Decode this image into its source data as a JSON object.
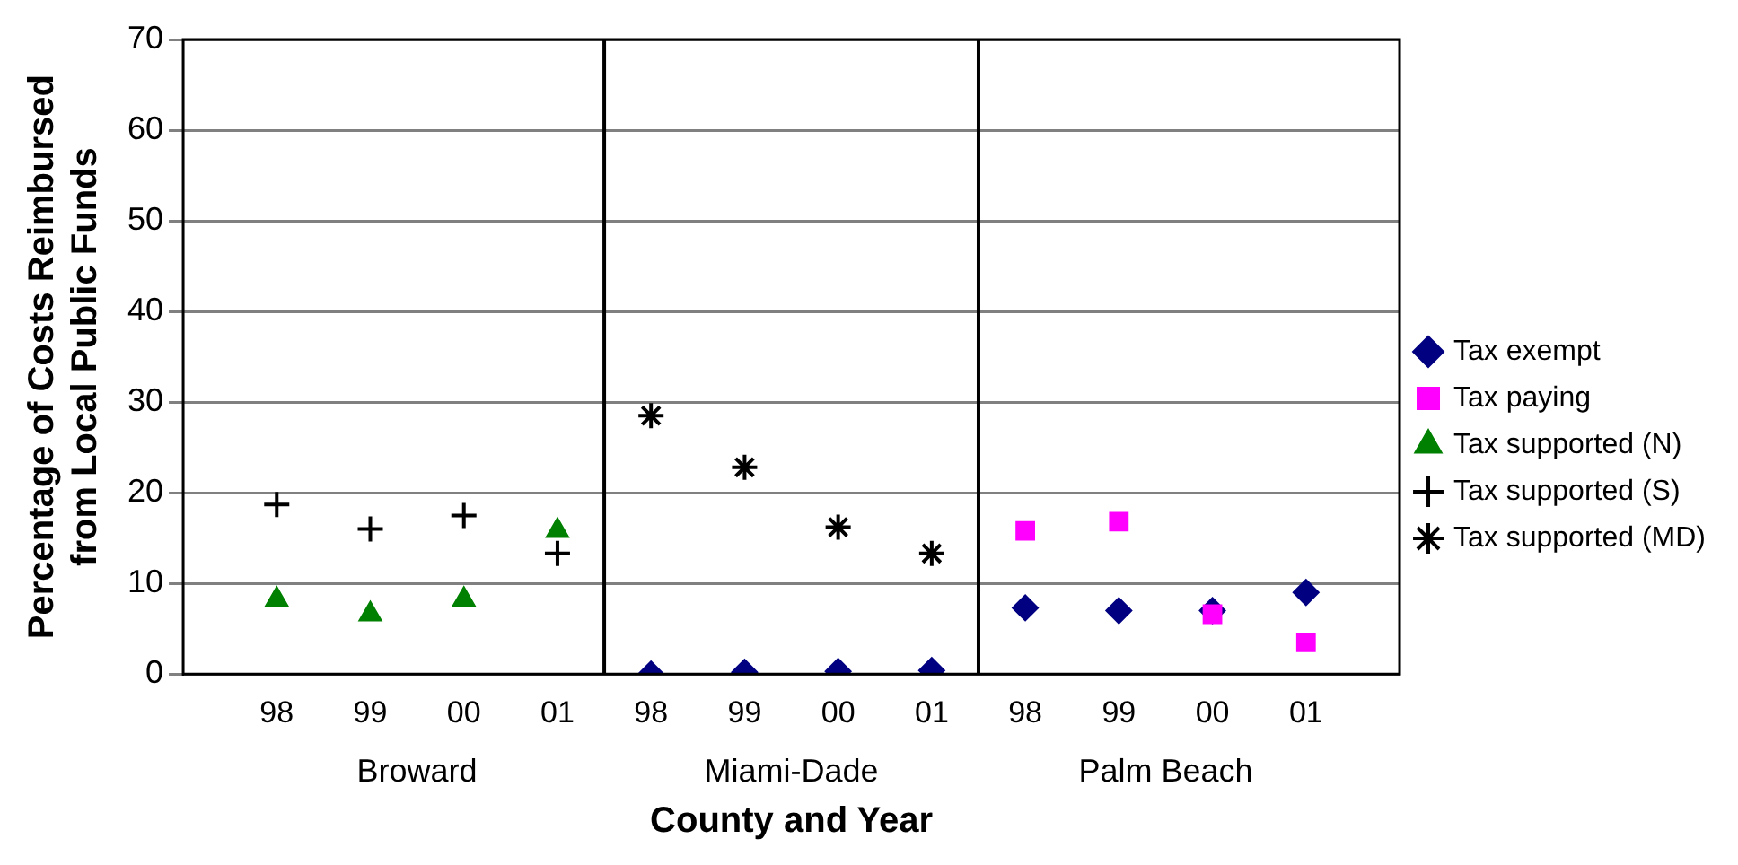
{
  "chart_data": {
    "type": "scatter",
    "xlabel": "County and Year",
    "ylabel": "Percentage of Costs Reimbursed\nfrom Local Public Funds",
    "categories": [
      null,
      "98",
      "99",
      "00",
      "01",
      "98",
      "99",
      "00",
      "01",
      "98",
      "99",
      "00",
      "01",
      null
    ],
    "annotations": [
      "Broward",
      "Miami-Dade",
      "Palm Beach"
    ],
    "series": [
      {
        "name": "Tax exempt",
        "color": "#000080",
        "marker": "diamond",
        "values": [
          null,
          null,
          null,
          null,
          null,
          0,
          0.2,
          0.3,
          0.4,
          7.3,
          7.0,
          7.0,
          9.0,
          null
        ]
      },
      {
        "name": "Tax paying",
        "color": "#ff00ff",
        "marker": "square",
        "values": [
          null,
          null,
          null,
          null,
          null,
          null,
          null,
          null,
          null,
          15.8,
          16.8,
          6.6,
          3.5,
          null
        ]
      },
      {
        "name": "Tax supported (N)",
        "color": "#008000",
        "marker": "triangle",
        "values": [
          null,
          8.2,
          6.6,
          8.2,
          15.8,
          null,
          null,
          null,
          null,
          null,
          null,
          null,
          null,
          null
        ]
      },
      {
        "name": "Tax supported (S)",
        "color": "#000000",
        "marker": "cross",
        "values": [
          null,
          18.7,
          16.0,
          17.5,
          13.3,
          null,
          null,
          null,
          null,
          null,
          null,
          null,
          null,
          null
        ]
      },
      {
        "name": "Tax supported (MD)",
        "color": "#000000",
        "values": [
          null,
          null,
          null,
          null,
          null,
          28.5,
          22.8,
          16.2,
          13.3,
          null,
          null,
          null,
          null,
          null
        ]
      }
    ],
    "ylim": [
      0,
      70
    ],
    "yticks": [
      0,
      10,
      20,
      30,
      40,
      50,
      60,
      70
    ],
    "grid": "y",
    "legend": "right"
  }
}
